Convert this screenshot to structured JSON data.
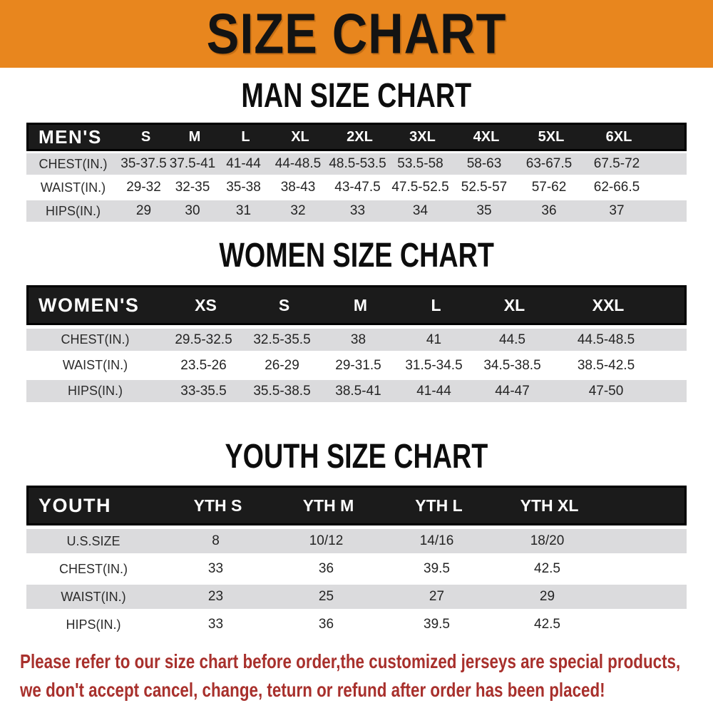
{
  "banner": {
    "title": "SIZE CHART"
  },
  "colors": {
    "banner_bg": "#E8861E",
    "banner_text": "#131313",
    "bar_bg": "#1B1B1B",
    "bar_border": "#000000",
    "row_gray": "#DBDBDD",
    "row_white": "#FFFFFF",
    "title_color": "#0D0D0D",
    "disclaimer_color": "#A8302C"
  },
  "men": {
    "title": "MAN SIZE CHART",
    "header_label": "MEN'S",
    "sizes": [
      "S",
      "M",
      "L",
      "XL",
      "2XL",
      "3XL",
      "4XL",
      "5XL",
      "6XL"
    ],
    "rows": [
      {
        "label": "CHEST(IN.)",
        "values": [
          "35-37.5",
          "37.5-41",
          "41-44",
          "44-48.5",
          "48.5-53.5",
          "53.5-58",
          "58-63",
          "63-67.5",
          "67.5-72"
        ]
      },
      {
        "label": "WAIST(IN.)",
        "values": [
          "29-32",
          "32-35",
          "35-38",
          "38-43",
          "43-47.5",
          "47.5-52.5",
          "52.5-57",
          "57-62",
          "62-66.5"
        ]
      },
      {
        "label": "HIPS(IN.)",
        "values": [
          "29",
          "30",
          "31",
          "32",
          "33",
          "34",
          "35",
          "36",
          "37"
        ]
      }
    ]
  },
  "women": {
    "title": "WOMEN SIZE CHART",
    "header_label": "WOMEN'S",
    "sizes": [
      "XS",
      "S",
      "M",
      "L",
      "XL",
      "XXL"
    ],
    "rows": [
      {
        "label": "CHEST(IN.)",
        "values": [
          "29.5-32.5",
          "32.5-35.5",
          "38",
          "41",
          "44.5",
          "44.5-48.5"
        ]
      },
      {
        "label": "WAIST(IN.)",
        "values": [
          "23.5-26",
          "26-29",
          "29-31.5",
          "31.5-34.5",
          "34.5-38.5",
          "38.5-42.5"
        ]
      },
      {
        "label": "HIPS(IN.)",
        "values": [
          "33-35.5",
          "35.5-38.5",
          "38.5-41",
          "41-44",
          "44-47",
          "47-50"
        ]
      }
    ]
  },
  "youth": {
    "title": "YOUTH SIZE CHART",
    "header_label": "YOUTH",
    "sizes": [
      "YTH S",
      "YTH M",
      "YTH L",
      "YTH XL"
    ],
    "rows": [
      {
        "label": "U.S.SIZE",
        "values": [
          "8",
          "10/12",
          "14/16",
          "18/20"
        ]
      },
      {
        "label": "CHEST(IN.)",
        "values": [
          "33",
          "36",
          "39.5",
          "42.5"
        ]
      },
      {
        "label": "WAIST(IN.)",
        "values": [
          "23",
          "25",
          "27",
          "29"
        ]
      },
      {
        "label": "HIPS(IN.)",
        "values": [
          "33",
          "36",
          "39.5",
          "42.5"
        ]
      }
    ]
  },
  "disclaimer": {
    "line1": "Please refer to our size chart before order,the customized jerseys are special products,",
    "line2": "we don't accept cancel, change, teturn or refund after order has been placed!"
  }
}
